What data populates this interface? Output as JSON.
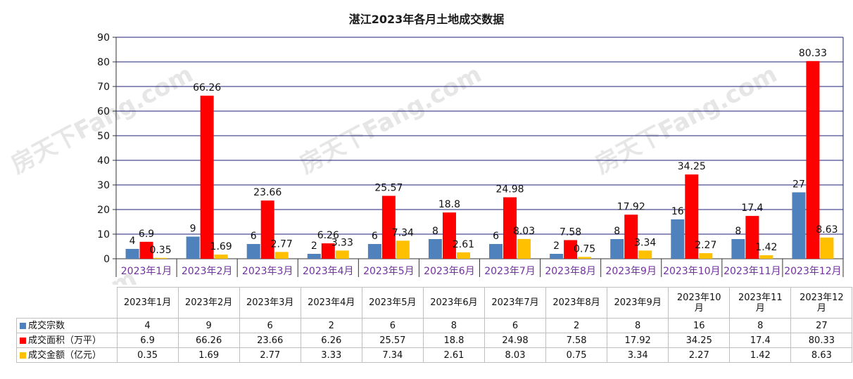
{
  "chart_data": {
    "type": "bar",
    "title": "湛江2023年各月土地成交数据",
    "categories": [
      "2023年1月",
      "2023年2月",
      "2023年3月",
      "2023年4月",
      "2023年5月",
      "2023年6月",
      "2023年7月",
      "2023年8月",
      "2023年9月",
      "2023年10月",
      "2023年11月",
      "2023年12月"
    ],
    "ylim": [
      0,
      90
    ],
    "yticks": [
      "0",
      "10",
      "20",
      "30",
      "40",
      "50",
      "60",
      "70",
      "80",
      "90"
    ],
    "grid": true,
    "series": [
      {
        "name": "成交宗数",
        "color": "#4f81bd",
        "values": [
          4,
          9,
          6,
          2,
          6,
          8,
          6,
          2,
          8,
          16,
          8,
          27
        ],
        "labels": [
          "4",
          "9",
          "6",
          "2",
          "6",
          "8",
          "6",
          "2",
          "8",
          "16",
          "8",
          "27"
        ]
      },
      {
        "name": "成交面积（万平）",
        "color": "#ff0000",
        "values": [
          6.9,
          66.26,
          23.66,
          6.26,
          25.57,
          18.8,
          24.98,
          7.58,
          17.92,
          34.25,
          17.4,
          80.33
        ],
        "labels": [
          "6.9",
          "66.26",
          "23.66",
          "6.26",
          "25.57",
          "18.8",
          "24.98",
          "7.58",
          "17.92",
          "34.25",
          "17.4",
          "80.33"
        ]
      },
      {
        "name": "成交金额（亿元）",
        "color": "#ffc000",
        "values": [
          0.35,
          1.69,
          2.77,
          3.33,
          7.34,
          2.61,
          8.03,
          0.75,
          3.34,
          2.27,
          1.42,
          8.63
        ],
        "labels": [
          "0.35",
          "1.69",
          "2.77",
          "3.33",
          "7.34",
          "2.61",
          "8.03",
          "0.75",
          "3.34",
          "2.27",
          "1.42",
          "8.63"
        ]
      }
    ],
    "axis_color": "#1f1f7a",
    "category_label_color": "#7030a0"
  },
  "watermark": "房天下Fang.com"
}
